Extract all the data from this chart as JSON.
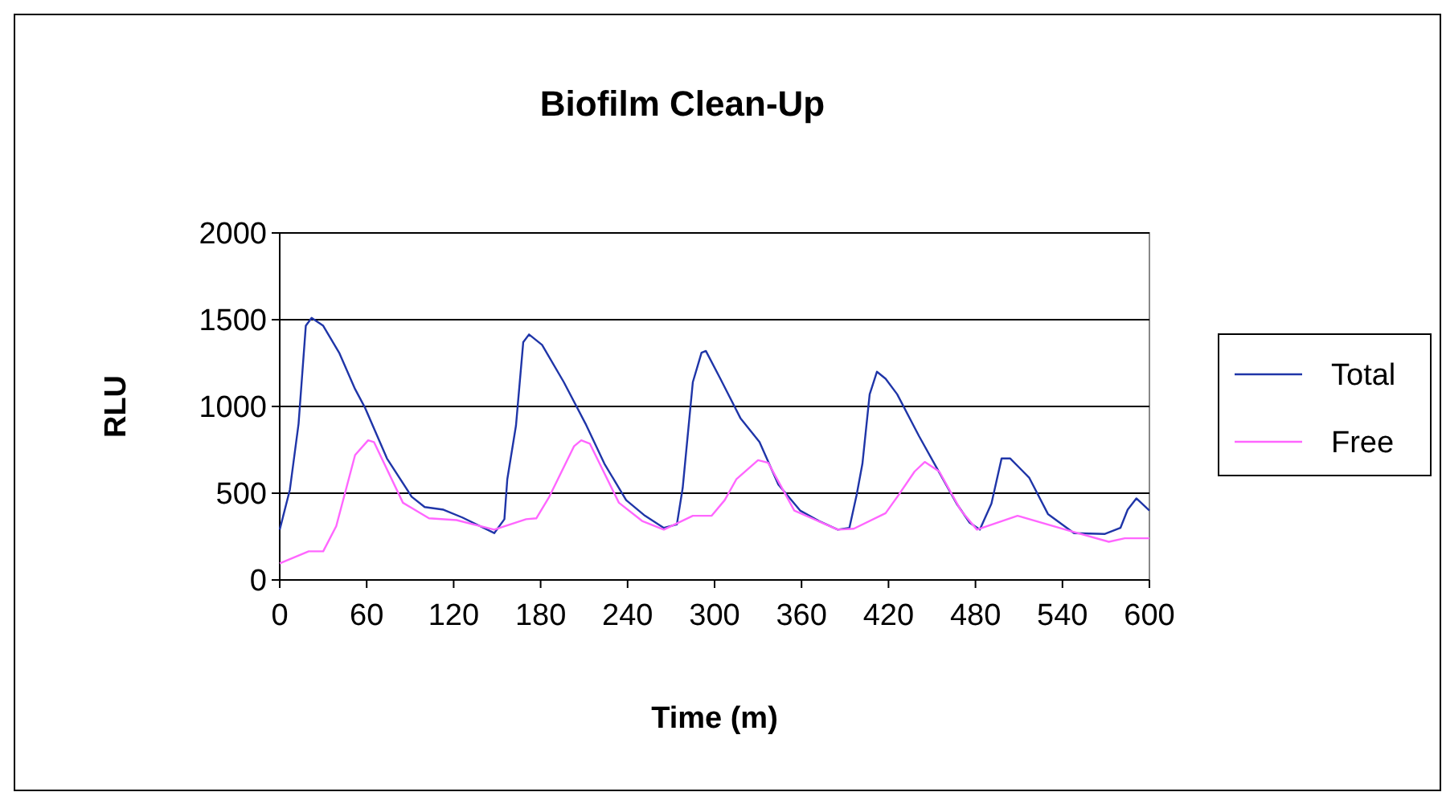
{
  "chart_data": {
    "type": "line",
    "title": "Biofilm Clean-Up",
    "xlabel": "Time (m)",
    "ylabel": "RLU",
    "xlim": [
      0,
      600
    ],
    "xticks": [
      0,
      60,
      120,
      180,
      240,
      300,
      360,
      420,
      480,
      540,
      600
    ],
    "ylim": [
      0,
      2000
    ],
    "yticks": [
      0,
      500,
      1000,
      1500,
      2000
    ],
    "grid": "y",
    "legend": "right",
    "marker": "none",
    "line_style": "solid",
    "series": [
      {
        "name": "Total",
        "color": "#1f35a8",
        "x": [
          0,
          7,
          13,
          18,
          22,
          30,
          41,
          52,
          59,
          74,
          91,
          100,
          113,
          126,
          148,
          155,
          157,
          163,
          168,
          172,
          181,
          196,
          211,
          224,
          239,
          252,
          265,
          274,
          278,
          285,
          291,
          294,
          304,
          318,
          331,
          344,
          359,
          372,
          385,
          393,
          398,
          402,
          407,
          412,
          418,
          426,
          441,
          455,
          467,
          476,
          483,
          491,
          498,
          504,
          517,
          530,
          548,
          569,
          580,
          585,
          591,
          600
        ],
        "values": [
          290,
          520,
          900,
          1465,
          1510,
          1465,
          1310,
          1100,
          990,
          700,
          480,
          420,
          405,
          360,
          270,
          350,
          580,
          890,
          1370,
          1415,
          1355,
          1140,
          900,
          670,
          460,
          370,
          300,
          320,
          530,
          1140,
          1310,
          1320,
          1160,
          930,
          795,
          550,
          400,
          340,
          290,
          300,
          490,
          670,
          1070,
          1200,
          1160,
          1070,
          830,
          620,
          440,
          330,
          290,
          440,
          700,
          700,
          590,
          380,
          270,
          265,
          300,
          405,
          470,
          400
        ]
      },
      {
        "name": "Free",
        "color": "#ff66ff",
        "x": [
          0,
          20,
          30,
          39,
          52,
          61,
          65,
          85,
          103,
          122,
          148,
          170,
          177,
          186,
          203,
          208,
          214,
          234,
          250,
          265,
          285,
          298,
          307,
          315,
          330,
          337,
          355,
          385,
          396,
          418,
          427,
          438,
          445,
          455,
          470,
          481,
          509,
          544,
          572,
          583,
          598,
          600
        ],
        "values": [
          95,
          165,
          165,
          310,
          720,
          805,
          795,
          445,
          355,
          345,
          290,
          350,
          355,
          480,
          770,
          805,
          785,
          445,
          340,
          290,
          370,
          370,
          460,
          580,
          690,
          675,
          400,
          290,
          295,
          385,
          490,
          625,
          680,
          625,
          400,
          290,
          370,
          285,
          220,
          240,
          240,
          240
        ]
      }
    ]
  }
}
